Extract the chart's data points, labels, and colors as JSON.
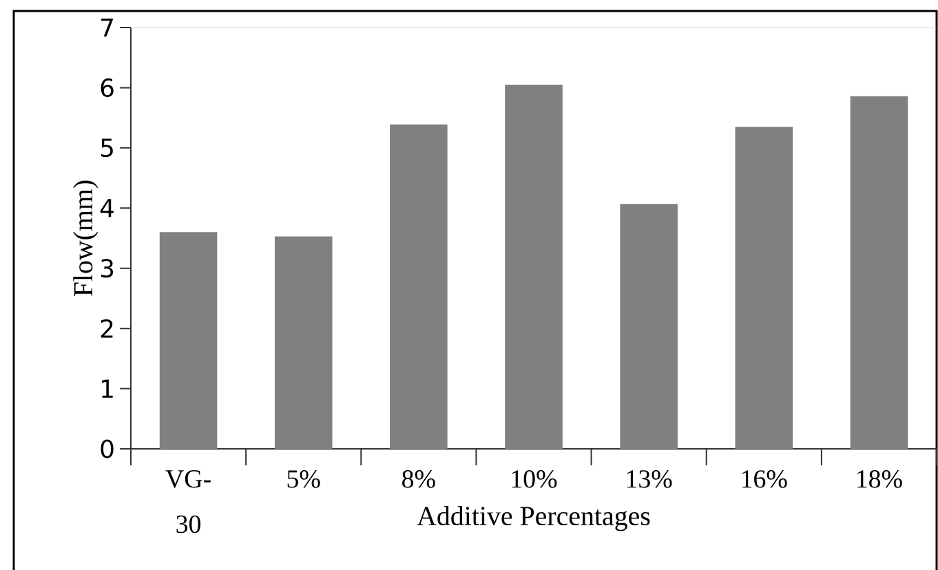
{
  "chart_data": {
    "type": "bar",
    "xlabel": "Additive Percentages",
    "ylabel": "Flow(mm)",
    "categories": [
      "VG-30",
      "5%",
      "8%",
      "10%",
      "13%",
      "16%",
      "18%"
    ],
    "values": [
      3.6,
      3.53,
      5.39,
      6.05,
      4.07,
      5.35,
      5.86
    ],
    "color": "#808080",
    "ylim": [
      0,
      7
    ],
    "yticks": [
      0,
      1,
      2,
      3,
      4,
      5,
      6,
      7
    ]
  }
}
